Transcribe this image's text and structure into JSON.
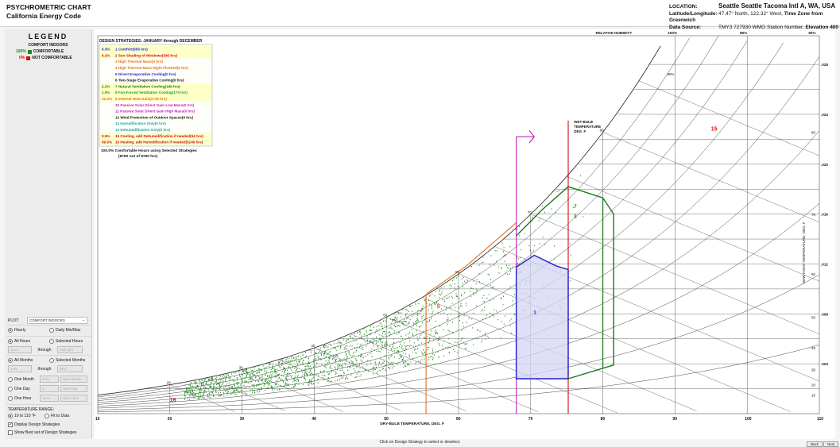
{
  "app": {
    "title_line1": "PSYCHROMETRIC CHART",
    "title_line2": "California Energy Code"
  },
  "location": {
    "label": "LOCATION:",
    "value": "Seattle Seattle Tacoma Intl A, WA, USA",
    "latlong_label": "Latitude/Longitude:",
    "latlong_value": "47.47° North, 122.32° West,",
    "tz_label": "Time Zone from Greenwich",
    "source_label": "Data Source:",
    "source_value": "TMY3    727930 WMO Station Number,",
    "elevation_label": "Elevation",
    "elevation_value": "400 ft"
  },
  "legend": {
    "title": "LEGEND",
    "subtitle": "COMFORT INDOORS",
    "rows": [
      {
        "pct": "100%",
        "label": "COMFORTABLE",
        "color": "#1a8a1a"
      },
      {
        "pct": "0%",
        "label": "NOT COMFORTABLE",
        "color": "#d01010"
      }
    ]
  },
  "controls": {
    "plot_label": "PLOT:",
    "plot_value": "COMFORT INDOORS",
    "hourly": "Hourly",
    "daily": "Daily Min/Max",
    "all_hours": "All Hours",
    "selected_hours": "Selected Hours",
    "hours_from": "1a.m.",
    "through": "through",
    "hours_to": "Midnight",
    "all_months": "All Months",
    "selected_months": "Selected Months",
    "month_from": "JAN",
    "month_to": "DEC",
    "one_month": "One Month",
    "one_month_val": "JAN",
    "next_month": "Next Month",
    "one_day": "One Day",
    "one_day_val": "1",
    "next_day": "Next Day",
    "one_hour": "One Hour",
    "one_hour_val": "1a.m.",
    "next_hour": "Next Hour",
    "temp_range_label": "TEMPERATURE RANGE:",
    "range_a": "10 to 110 °F",
    "range_b": "Fit to Data",
    "display_strategies": "Display Design Strategies",
    "show_best": "Show Best set of Design Strategies"
  },
  "strategies": {
    "header": "DESIGN STRATEGIES:  JANUARY through DECEMBER",
    "items": [
      {
        "pct": "6.3%",
        "text": "1  Comfort(555 hrs)",
        "color": "#1f1fd0",
        "bg": "#ffffc8"
      },
      {
        "pct": "6.2%",
        "text": "2  Sun Shading of Windows(545 hrs)",
        "color": "#d01010",
        "bg": "#ffffc8"
      },
      {
        "pct": "",
        "text": "3  High Thermal Mass(0 hrs)",
        "color": "#e07020",
        "bg": ""
      },
      {
        "pct": "",
        "text": "4  High Thermal Mass Night Flushed(0 hrs)",
        "color": "#e07020",
        "bg": ""
      },
      {
        "pct": "",
        "text": "5  Direct Evaporative Cooling(0 hrs)",
        "color": "#1f1fd0",
        "bg": ""
      },
      {
        "pct": "",
        "text": "6  Two-Stage Evaporative Cooling(0 hrs)",
        "color": "#111111",
        "bg": ""
      },
      {
        "pct": "2.2%",
        "text": "7  Natural Ventilation Cooling(189 hrs)",
        "color": "#1a7a1a",
        "bg": "#ffffc8"
      },
      {
        "pct": "1.9%",
        "text": "8  Fan-Forced Ventilation Cooling(170 hrs)",
        "color": "#20a020",
        "bg": "#ffffc8"
      },
      {
        "pct": "31.0%",
        "text": "9  Internal Heat Gain(2715 hrs)",
        "color": "#e07020",
        "bg": "#ffffc8"
      },
      {
        "pct": "",
        "text": "10  Passive Solar Direct Gain Low Mass(0 hrs)",
        "color": "#c020c0",
        "bg": ""
      },
      {
        "pct": "",
        "text": "11  Passive Solar Direct Gain High Mass(0 hrs)",
        "color": "#c020c0",
        "bg": ""
      },
      {
        "pct": "",
        "text": "12  Wind Protection of Outdoor Spaces(0 hrs)",
        "color": "#111111",
        "bg": ""
      },
      {
        "pct": "",
        "text": "13  Humidification Only(0 hrs)",
        "color": "#20a0a0",
        "bg": ""
      },
      {
        "pct": "",
        "text": "14  Dehumidification Only(0 hrs)",
        "color": "#20a0a0",
        "bg": ""
      },
      {
        "pct": "0.6%",
        "text": "15  Cooling, add Dehumidification if needed(54 hrs)",
        "color": "#d01010",
        "bg": "#ffffc8"
      },
      {
        "pct": "59.9%",
        "text": "16  Heating, add Humidification if needed(5246 hrs)",
        "color": "#d01010",
        "bg": "#ffffc8"
      }
    ],
    "summary_pct": "100.0%",
    "summary_line1": "Comfortable Hours using Selected Strategies",
    "summary_line2": "(8760 out of 8760 hrs)"
  },
  "chart": {
    "x_axis_title": "DRY-BULB TEMPERATURE, DEG. F",
    "x_ticks": [
      "10",
      "20",
      "30",
      "40",
      "50",
      "60",
      "70",
      "80",
      "90",
      "100",
      "110"
    ],
    "y_axis_title": "HUMIDITY RATIO, LB/LB",
    "y_ticks": [
      ".028",
      ".024",
      ".020",
      ".016",
      ".012",
      ".008",
      ".004"
    ],
    "dewpoint_title": "DEW POINT TEMPERATURE, DEG. F",
    "dewpoint_ticks": [
      "80",
      "70",
      "60",
      "50",
      "40",
      "30",
      "20",
      "10"
    ],
    "rh_header": "RELATIVE HUMIDITY",
    "rh_labels": [
      "100%",
      "80%",
      "60%"
    ],
    "rh_inline": "90%",
    "wb_title_1": "WET-BULB",
    "wb_title_2": "TEMPERATURE",
    "wb_title_3": "DEG. F",
    "wb_labels": [
      "80",
      "70",
      "60",
      "50",
      "40",
      "30",
      "20"
    ],
    "zone_labels": {
      "z1": "1",
      "z7": "7",
      "z8": "8",
      "z15": "15",
      "z16": "16",
      "z9": "9"
    },
    "colors": {
      "comfort": "#1f1fd0",
      "comfort_fill": "#d4d4f2",
      "internal_gain": "#e07020",
      "sun_shading": "#d01010",
      "passive": "#c020c0",
      "ventilation": "#1a7a1a",
      "points": "#1a8a1a",
      "grid": "#333333"
    }
  },
  "status_text": "Click on Design Strategy to select or deselect.",
  "buttons": {
    "back": "Back",
    "next": "Next"
  }
}
